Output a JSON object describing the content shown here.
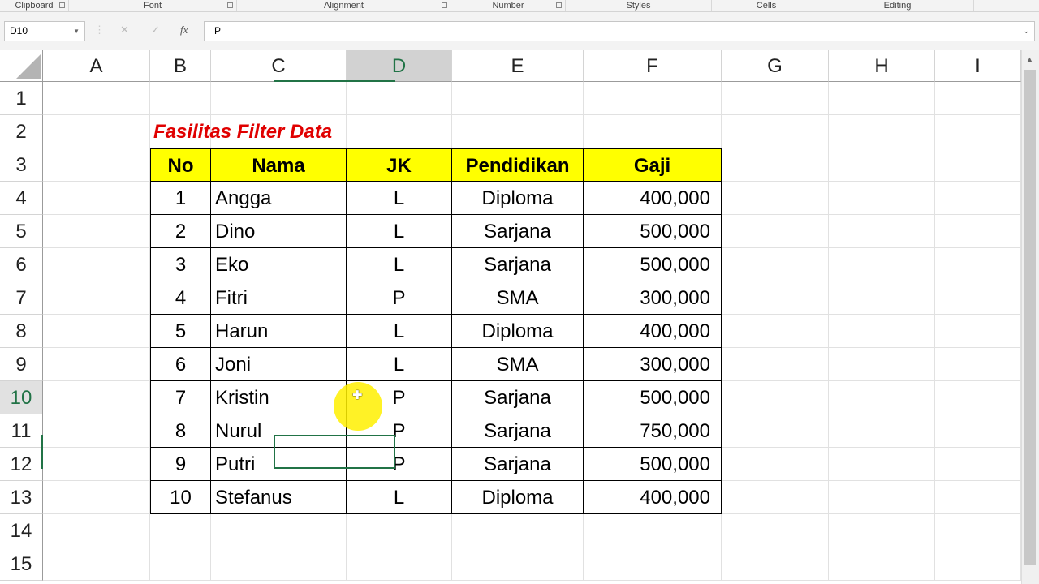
{
  "ribbon_groups": [
    {
      "label": "Clipboard",
      "launcher": true
    },
    {
      "label": "Font",
      "launcher": true
    },
    {
      "label": "Alignment",
      "launcher": true
    },
    {
      "label": "Number",
      "launcher": true
    },
    {
      "label": "Styles",
      "launcher": false
    },
    {
      "label": "Cells",
      "launcher": false
    },
    {
      "label": "Editing",
      "launcher": false
    }
  ],
  "name_box": "D10",
  "formula_bar": {
    "cancel_icon": "✕",
    "enter_icon": "✓",
    "fx_label": "fx",
    "value": "P"
  },
  "columns": [
    "A",
    "B",
    "C",
    "D",
    "E",
    "F",
    "G",
    "H",
    "I"
  ],
  "selected_column": "D",
  "rows": [
    "1",
    "2",
    "3",
    "4",
    "5",
    "6",
    "7",
    "8",
    "9",
    "10",
    "11",
    "12",
    "13",
    "14",
    "15"
  ],
  "selected_row": "10",
  "title": "Fasilitas Filter Data",
  "title_color": "#e00000",
  "header_fill": "#ffff00",
  "table": {
    "headers": [
      "No",
      "Nama",
      "JK",
      "Pendidikan",
      "Gaji"
    ],
    "rows": [
      [
        "1",
        "Angga",
        "L",
        "Diploma",
        "400,000"
      ],
      [
        "2",
        "Dino",
        "L",
        "Sarjana",
        "500,000"
      ],
      [
        "3",
        "Eko",
        "L",
        "Sarjana",
        "500,000"
      ],
      [
        "4",
        "Fitri",
        "P",
        "SMA",
        "300,000"
      ],
      [
        "5",
        "Harun",
        "L",
        "Diploma",
        "400,000"
      ],
      [
        "6",
        "Joni",
        "L",
        "SMA",
        "300,000"
      ],
      [
        "7",
        "Kristin",
        "P",
        "Sarjana",
        "500,000"
      ],
      [
        "8",
        "Nurul",
        "P",
        "Sarjana",
        "750,000"
      ],
      [
        "9",
        "Putri",
        "P",
        "Sarjana",
        "500,000"
      ],
      [
        "10",
        "Stefanus",
        "L",
        "Diploma",
        "400,000"
      ]
    ]
  }
}
